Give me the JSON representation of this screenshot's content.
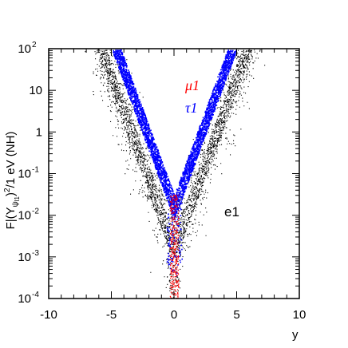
{
  "chart_data": {
    "type": "scatter",
    "xlabel": "y",
    "ylabel": "F|(Y",
    "ylabel_sub": "ψ",
    "ylabel_sub2": "l1",
    "ylabel_rest": ")",
    "ylabel_sup": "2",
    "ylabel_tail": "/1 eV (NH)",
    "xlim": [
      -10,
      10
    ],
    "ylim_log10": [
      -4,
      2
    ],
    "y_scale": "log",
    "x_ticks": [
      {
        "value": -10,
        "label": "-10"
      },
      {
        "value": -5,
        "label": "-5"
      },
      {
        "value": 0,
        "label": "0"
      },
      {
        "value": 5,
        "label": "5"
      },
      {
        "value": 10,
        "label": "10"
      }
    ],
    "y_ticks": [
      {
        "exp": 2,
        "base": "10",
        "sup": "2"
      },
      {
        "exp": 1,
        "base": "10",
        "sup": ""
      },
      {
        "exp": 0,
        "base": "1",
        "sup": ""
      },
      {
        "exp": -1,
        "base": "10",
        "sup": "-1"
      },
      {
        "exp": -2,
        "base": "10",
        "sup": "-2"
      },
      {
        "exp": -3,
        "base": "10",
        "sup": "-3"
      },
      {
        "exp": -4,
        "base": "10",
        "sup": "-4"
      }
    ],
    "series": [
      {
        "name": "e1",
        "color": "#000000",
        "log10_y_at_x0": -2.8,
        "log10_slope_per_unit_x": 0.82,
        "band_log10_halfwidth": 0.35,
        "log10_spread": 0.75
      },
      {
        "name": "τ1",
        "color": "#0000ff",
        "log10_y_at_x0": -1.8,
        "log10_slope_per_unit_x": 0.82,
        "band_log10_halfwidth": 0.3
      },
      {
        "name": "μ1",
        "color": "#ff0000",
        "log10_y_at_x0": -2.2,
        "log10_slope_per_unit_x": 0.82,
        "x_halfwidth": 0.35,
        "log10_range": [
          -4,
          -1.5
        ]
      }
    ],
    "legend": [
      {
        "text": "μ1",
        "color": "#ff0000"
      },
      {
        "text": "τ1",
        "color": "#0000ff"
      }
    ],
    "annotation": {
      "text": "e1",
      "color": "#000000"
    }
  }
}
